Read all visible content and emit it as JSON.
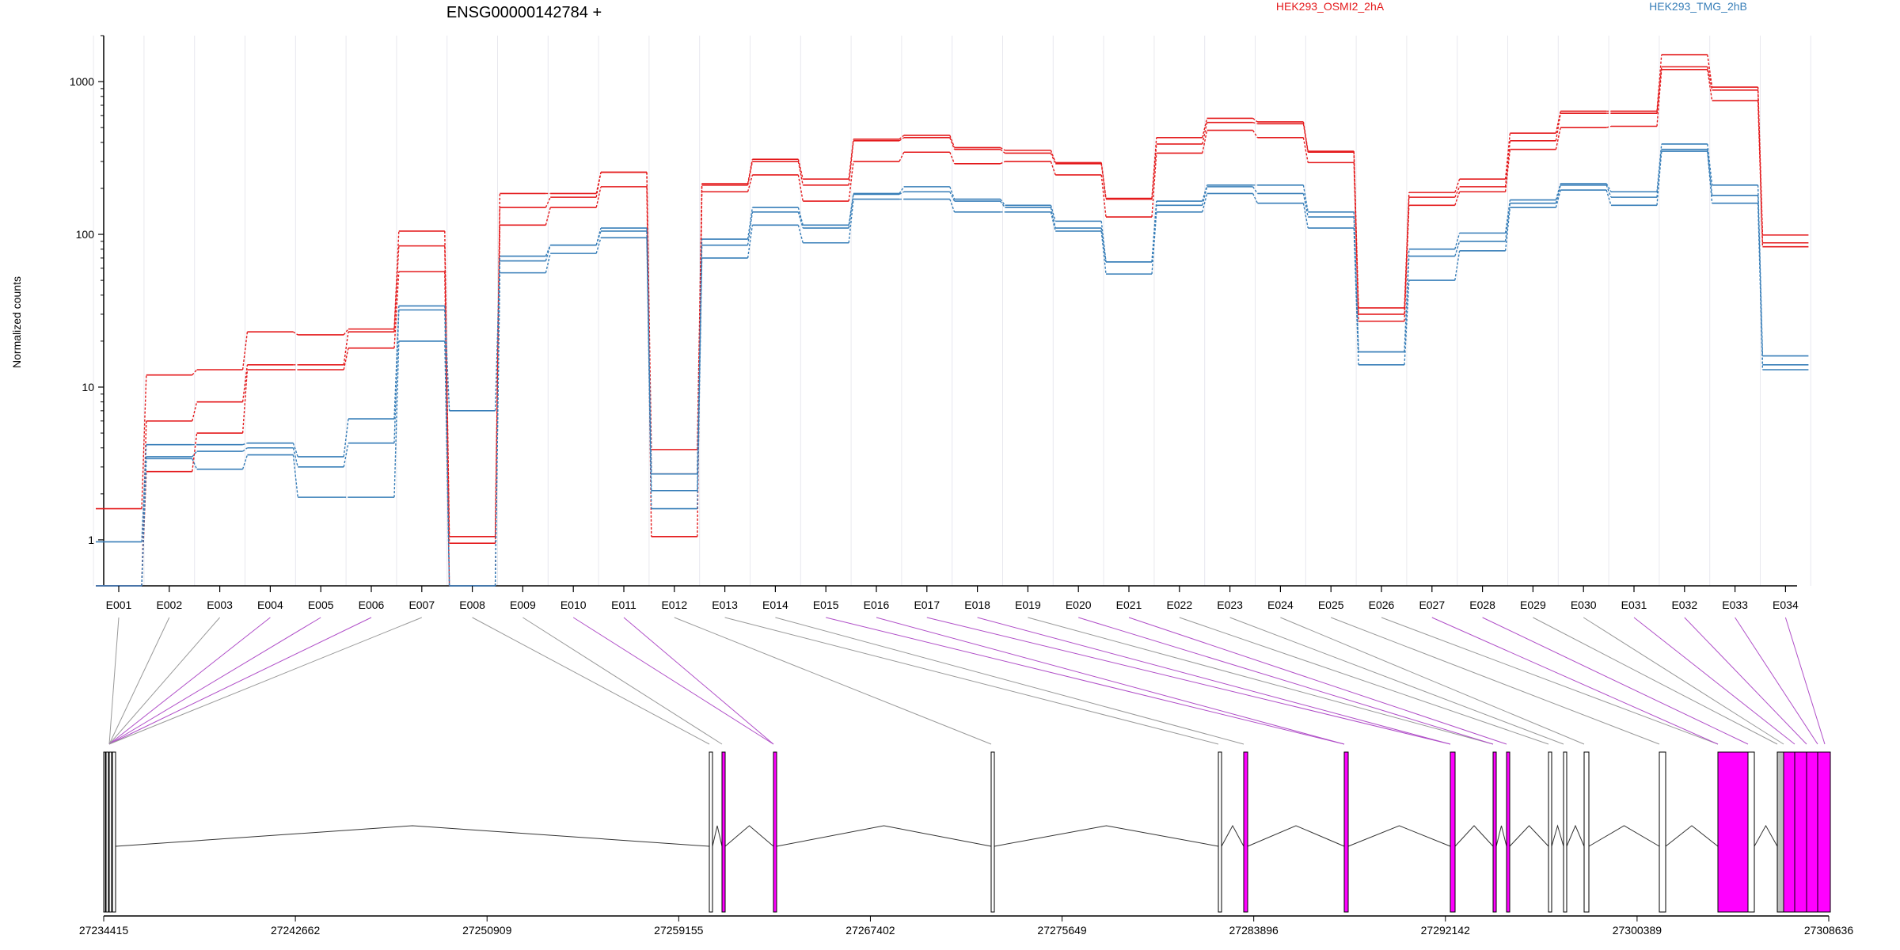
{
  "title": "ENSG00000142784 +",
  "colors": {
    "cond_a": "#e41a1c",
    "cond_b": "#377eb8",
    "highlight": "#ff00ff",
    "exon_plain": "#ffffff",
    "exon_gray": "#bdbdbd",
    "grid": "#e8e8ee"
  },
  "chart_data": {
    "type": "line",
    "scale": "log",
    "title": "ENSG00000142784 +",
    "ylabel": "Normalized counts",
    "ylim": [
      0.5,
      2000
    ],
    "yticks": [
      1,
      10,
      100,
      1000
    ],
    "ytick_labels": [
      "1",
      "10",
      "100",
      "1000"
    ],
    "legend": [
      "HEK293_OSMI2_2hA",
      "HEK293_TMG_2hB"
    ],
    "legend_placement": "top",
    "categories": [
      "E001",
      "E002",
      "E003",
      "E004",
      "E005",
      "E006",
      "E007",
      "E008",
      "E009",
      "E010",
      "E011",
      "E012",
      "E013",
      "E014",
      "E015",
      "E016",
      "E017",
      "E018",
      "E019",
      "E020",
      "E021",
      "E022",
      "E023",
      "E024",
      "E025",
      "E026",
      "E027",
      "E028",
      "E029",
      "E030",
      "E031",
      "E032",
      "E033",
      "E034"
    ],
    "series": [
      {
        "group": "HEK293_OSMI2_2hA",
        "color": "#e41a1c",
        "values": [
          1.6,
          12,
          13,
          23,
          22,
          24,
          105,
          1.05,
          185,
          185,
          255,
          3.9,
          215,
          310,
          230,
          420,
          445,
          370,
          355,
          295,
          172,
          430,
          575,
          545,
          350,
          33,
          188,
          230,
          460,
          640,
          640,
          1500,
          920,
          99
        ]
      },
      {
        "group": "HEK293_OSMI2_2hA",
        "color": "#e41a1c",
        "values": [
          0.5,
          6,
          8,
          14,
          14,
          23,
          84,
          0.95,
          150,
          175,
          255,
          2.7,
          210,
          300,
          210,
          410,
          430,
          360,
          340,
          290,
          170,
          390,
          540,
          530,
          345,
          30,
          175,
          205,
          410,
          620,
          620,
          1250,
          880,
          88
        ]
      },
      {
        "group": "HEK293_OSMI2_2hA",
        "color": "#e41a1c",
        "values": [
          0.5,
          2.8,
          5,
          13,
          13,
          18,
          57,
          0.5,
          115,
          150,
          205,
          1.05,
          190,
          245,
          165,
          300,
          345,
          290,
          300,
          245,
          130,
          340,
          480,
          430,
          295,
          27,
          155,
          190,
          360,
          500,
          510,
          1200,
          750,
          83
        ]
      },
      {
        "group": "HEK293_TMG_2hB",
        "color": "#377eb8",
        "values": [
          0.97,
          4.2,
          4.2,
          4.3,
          3.5,
          6.2,
          34,
          7,
          72,
          85,
          110,
          2.7,
          93,
          150,
          115,
          185,
          205,
          170,
          155,
          122,
          66,
          165,
          210,
          210,
          140,
          17,
          80,
          102,
          168,
          215,
          190,
          390,
          210,
          16
        ]
      },
      {
        "group": "HEK293_TMG_2hB",
        "color": "#377eb8",
        "values": [
          0.5,
          3.5,
          3.8,
          4,
          3,
          4.3,
          32,
          0.5,
          67,
          85,
          105,
          2.1,
          85,
          140,
          110,
          183,
          190,
          165,
          150,
          110,
          66,
          155,
          205,
          185,
          130,
          17,
          72,
          90,
          160,
          210,
          175,
          360,
          180,
          14
        ]
      },
      {
        "group": "HEK293_TMG_2hB",
        "color": "#377eb8",
        "values": [
          0.5,
          3.4,
          2.9,
          3.6,
          1.9,
          1.9,
          20,
          0.5,
          56,
          75,
          95,
          1.6,
          70,
          115,
          88,
          170,
          170,
          140,
          140,
          105,
          55,
          140,
          185,
          160,
          110,
          14,
          50,
          78,
          150,
          195,
          155,
          350,
          160,
          13
        ]
      }
    ],
    "genomic_axis": {
      "tick_labels": [
        "27234415",
        "27242662",
        "27250909",
        "27259155",
        "27267402",
        "27275649",
        "27283896",
        "27292142",
        "27300389",
        "27308636"
      ]
    }
  }
}
